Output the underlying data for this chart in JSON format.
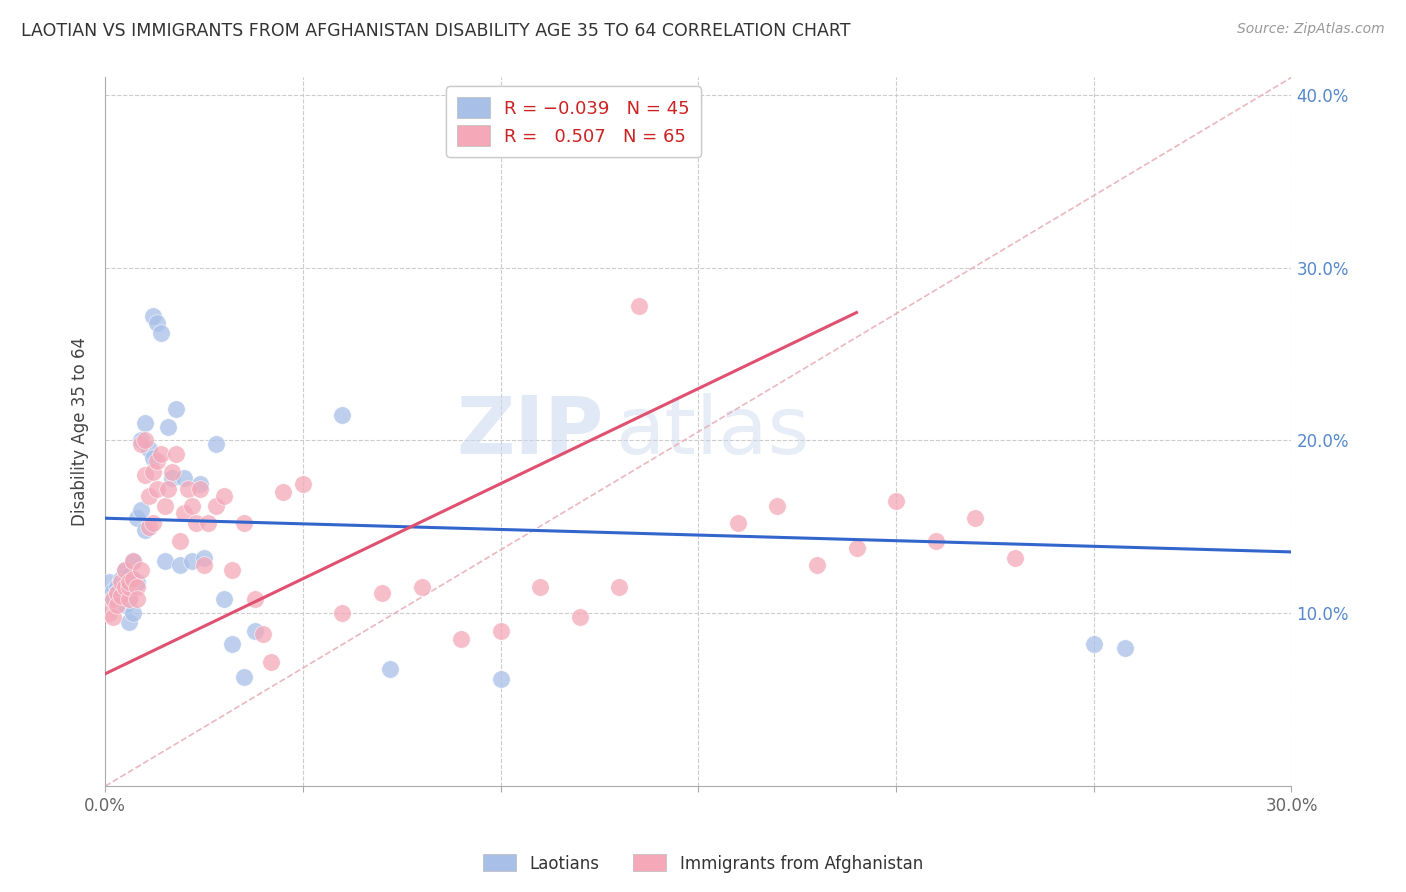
{
  "title": "LAOTIAN VS IMMIGRANTS FROM AFGHANISTAN DISABILITY AGE 35 TO 64 CORRELATION CHART",
  "source": "Source: ZipAtlas.com",
  "ylabel": "Disability Age 35 to 64",
  "legend_label1": "Laotians",
  "legend_label2": "Immigrants from Afghanistan",
  "R1": -0.039,
  "N1": 45,
  "R2": 0.507,
  "N2": 65,
  "xmin": 0.0,
  "xmax": 0.3,
  "ymin": 0.0,
  "ymax": 0.41,
  "color_blue": "#A8C0E8",
  "color_pink": "#F4A8B8",
  "color_line_blue": "#3366CC",
  "color_line_pink": "#E05070",
  "color_diagonal": "#E8B0B8",
  "background": "#FFFFFF",
  "watermark_zip": "ZIP",
  "watermark_atlas": "atlas",
  "laotian_x": [
    0.001,
    0.002,
    0.002,
    0.003,
    0.003,
    0.004,
    0.004,
    0.005,
    0.005,
    0.005,
    0.006,
    0.006,
    0.006,
    0.007,
    0.007,
    0.008,
    0.008,
    0.009,
    0.009,
    0.01,
    0.01,
    0.011,
    0.012,
    0.012,
    0.013,
    0.014,
    0.015,
    0.016,
    0.017,
    0.018,
    0.019,
    0.02,
    0.022,
    0.024,
    0.025,
    0.028,
    0.03,
    0.032,
    0.035,
    0.038,
    0.06,
    0.072,
    0.1,
    0.25,
    0.258
  ],
  "laotian_y": [
    0.118,
    0.113,
    0.108,
    0.115,
    0.112,
    0.12,
    0.11,
    0.125,
    0.118,
    0.105,
    0.122,
    0.108,
    0.095,
    0.13,
    0.1,
    0.155,
    0.118,
    0.2,
    0.16,
    0.21,
    0.148,
    0.195,
    0.19,
    0.272,
    0.268,
    0.262,
    0.13,
    0.208,
    0.178,
    0.218,
    0.128,
    0.178,
    0.13,
    0.175,
    0.132,
    0.198,
    0.108,
    0.082,
    0.063,
    0.09,
    0.215,
    0.068,
    0.062,
    0.082,
    0.08
  ],
  "afghan_x": [
    0.001,
    0.002,
    0.002,
    0.003,
    0.003,
    0.004,
    0.004,
    0.005,
    0.005,
    0.006,
    0.006,
    0.006,
    0.007,
    0.007,
    0.008,
    0.008,
    0.009,
    0.009,
    0.01,
    0.01,
    0.011,
    0.011,
    0.012,
    0.012,
    0.013,
    0.013,
    0.014,
    0.015,
    0.016,
    0.017,
    0.018,
    0.019,
    0.02,
    0.021,
    0.022,
    0.023,
    0.024,
    0.025,
    0.026,
    0.028,
    0.03,
    0.032,
    0.035,
    0.038,
    0.04,
    0.042,
    0.045,
    0.05,
    0.06,
    0.07,
    0.08,
    0.09,
    0.1,
    0.11,
    0.12,
    0.13,
    0.135,
    0.16,
    0.17,
    0.18,
    0.19,
    0.2,
    0.21,
    0.22,
    0.23
  ],
  "afghan_y": [
    0.1,
    0.108,
    0.098,
    0.112,
    0.105,
    0.11,
    0.118,
    0.115,
    0.125,
    0.108,
    0.115,
    0.118,
    0.12,
    0.13,
    0.115,
    0.108,
    0.125,
    0.198,
    0.18,
    0.2,
    0.15,
    0.168,
    0.182,
    0.152,
    0.188,
    0.172,
    0.192,
    0.162,
    0.172,
    0.182,
    0.192,
    0.142,
    0.158,
    0.172,
    0.162,
    0.152,
    0.172,
    0.128,
    0.152,
    0.162,
    0.168,
    0.125,
    0.152,
    0.108,
    0.088,
    0.072,
    0.17,
    0.175,
    0.1,
    0.112,
    0.115,
    0.085,
    0.09,
    0.115,
    0.098,
    0.115,
    0.278,
    0.152,
    0.162,
    0.128,
    0.138,
    0.165,
    0.142,
    0.155,
    0.132
  ]
}
